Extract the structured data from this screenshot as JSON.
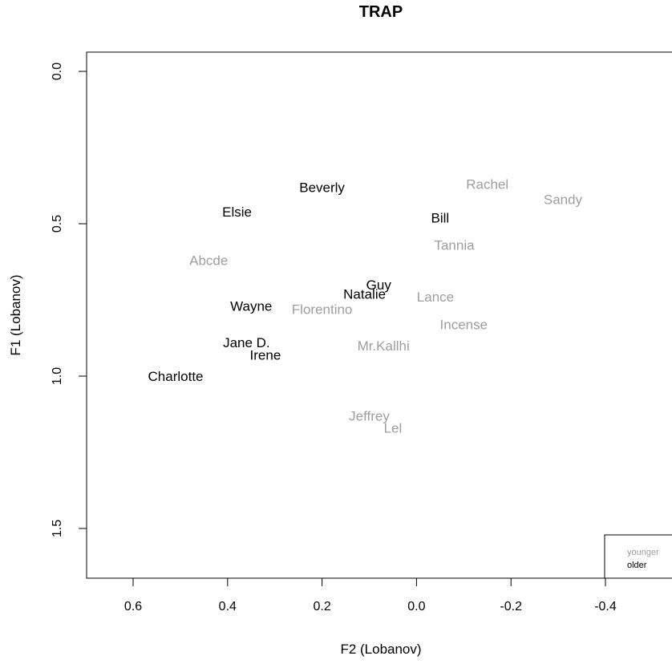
{
  "chart_data": {
    "type": "scatter",
    "title": "TRAP",
    "xlabel": "F2 (Lobanov)",
    "ylabel": "F1 (Lobanov)",
    "xlim": [
      0.7,
      -0.55
    ],
    "ylim": [
      1.65,
      -0.06
    ],
    "x_reversed": true,
    "y_reversed": true,
    "x_ticks": [
      0.6,
      0.4,
      0.2,
      0.0,
      -0.2,
      -0.4
    ],
    "x_tick_labels": [
      "0.6",
      "0.4",
      "0.2",
      "0.0",
      "-0.2",
      "-0.4"
    ],
    "y_ticks": [
      0.0,
      0.5,
      1.0,
      1.5
    ],
    "y_tick_labels": [
      "0.0",
      "0.5",
      "1.0",
      "1.5"
    ],
    "grid": false,
    "legend_position": "bottom-right",
    "series": [
      {
        "name": "younger",
        "color": "#9e9e9e",
        "points": [
          {
            "label": "Rachel",
            "x": -0.15,
            "y": 0.37
          },
          {
            "label": "Sandy",
            "x": -0.31,
            "y": 0.42
          },
          {
            "label": "Tannia",
            "x": -0.08,
            "y": 0.57
          },
          {
            "label": "Abcde",
            "x": 0.44,
            "y": 0.62
          },
          {
            "label": "Lance",
            "x": -0.04,
            "y": 0.74
          },
          {
            "label": "Florentino",
            "x": 0.2,
            "y": 0.78
          },
          {
            "label": "Incense",
            "x": -0.1,
            "y": 0.83
          },
          {
            "label": "Mr.Kallhi",
            "x": 0.07,
            "y": 0.9
          },
          {
            "label": "Jeffrey",
            "x": 0.1,
            "y": 1.13
          },
          {
            "label": "Lel",
            "x": 0.05,
            "y": 1.17
          }
        ]
      },
      {
        "name": "older",
        "color": "#000000",
        "points": [
          {
            "label": "Beverly",
            "x": 0.2,
            "y": 0.38
          },
          {
            "label": "Elsie",
            "x": 0.38,
            "y": 0.46
          },
          {
            "label": "Bill",
            "x": -0.05,
            "y": 0.48
          },
          {
            "label": "Guy",
            "x": 0.08,
            "y": 0.7
          },
          {
            "label": "Natalie",
            "x": 0.11,
            "y": 0.73
          },
          {
            "label": "Wayne",
            "x": 0.35,
            "y": 0.77
          },
          {
            "label": "Jane D.",
            "x": 0.36,
            "y": 0.89
          },
          {
            "label": "Irene",
            "x": 0.32,
            "y": 0.93
          },
          {
            "label": "Charlotte",
            "x": 0.51,
            "y": 1.0
          }
        ]
      }
    ]
  }
}
